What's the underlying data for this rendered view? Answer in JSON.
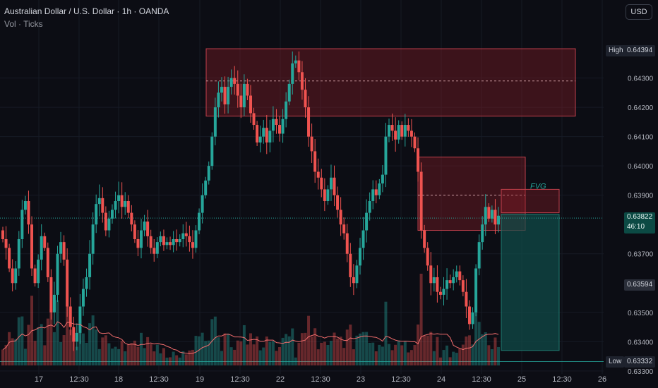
{
  "header": {
    "symbol_title": "Australian Dollar / U.S. Dollar · 1h · OANDA",
    "volume_label": "Vol · Ticks"
  },
  "currency_button": "USD",
  "price_tags": {
    "high_label": "High",
    "high_value": "0.64394",
    "current_value": "0.63822",
    "countdown": "46:10",
    "level_value": "0.63594",
    "low_label": "Low",
    "low_value": "0.63332"
  },
  "annotation": {
    "fvg_label": "FVG"
  },
  "colors": {
    "up": "#26a69a",
    "down": "#ef5350",
    "background": "#0c0d14",
    "zone_fill": "#8b1e28",
    "target_fill": "#0f4f4a",
    "ma_line": "#f26d6d"
  },
  "chart_data": {
    "type": "candlestick",
    "y_axis": {
      "range": [
        0.6329,
        0.6447
      ],
      "ticks": [
        "0.64300",
        "0.64200",
        "0.64100",
        "0.64000",
        "0.63900",
        "0.63700",
        "0.63500",
        "0.63400",
        "0.63300"
      ]
    },
    "x_axis": {
      "labels": [
        "17",
        "12:30",
        "18",
        "12:30",
        "19",
        "12:30",
        "22",
        "12:30",
        "23",
        "12:30",
        "24",
        "12:30",
        "25",
        "12:30",
        "26"
      ]
    },
    "high_marker": 0.64394,
    "low_marker": 0.63332,
    "current_price": 0.63822,
    "level_marker": 0.63594,
    "zones": [
      {
        "name": "upper-supply-zone",
        "top": 0.644,
        "bottom": 0.6417,
        "mid": 0.6429
      },
      {
        "name": "fvg-zone",
        "top": 0.6403,
        "bottom": 0.6378,
        "mid": 0.639
      },
      {
        "name": "small-fvg-zone",
        "top": 0.6392,
        "bottom": 0.6384
      }
    ],
    "target_box": {
      "top": 0.63835,
      "bottom": 0.6337
    },
    "closes": [
      0.6375,
      0.6372,
      0.6365,
      0.636,
      0.6365,
      0.6375,
      0.6385,
      0.6388,
      0.638,
      0.6365,
      0.636,
      0.6368,
      0.6376,
      0.6372,
      0.6362,
      0.635,
      0.6356,
      0.637,
      0.6374,
      0.6368,
      0.6352,
      0.6345,
      0.634,
      0.6343,
      0.6352,
      0.6358,
      0.6362,
      0.637,
      0.638,
      0.6387,
      0.6389,
      0.6384,
      0.6378,
      0.6382,
      0.6385,
      0.6388,
      0.639,
      0.6386,
      0.6388,
      0.6384,
      0.638,
      0.6375,
      0.6372,
      0.6378,
      0.6381,
      0.6376,
      0.6372,
      0.637,
      0.6374,
      0.6376,
      0.6373,
      0.6374,
      0.6373,
      0.6375,
      0.6374,
      0.6375,
      0.6377,
      0.6376,
      0.6374,
      0.6372,
      0.6378,
      0.6384,
      0.639,
      0.6395,
      0.64,
      0.641,
      0.642,
      0.6425,
      0.6427,
      0.6421,
      0.6427,
      0.643,
      0.6428,
      0.6424,
      0.642,
      0.6428,
      0.6424,
      0.6418,
      0.6414,
      0.6408,
      0.641,
      0.6413,
      0.6408,
      0.6412,
      0.6416,
      0.6414,
      0.6411,
      0.6416,
      0.6422,
      0.6428,
      0.6435,
      0.6436,
      0.6432,
      0.6426,
      0.642,
      0.641,
      0.6405,
      0.6398,
      0.6396,
      0.6392,
      0.6388,
      0.6392,
      0.6396,
      0.639,
      0.6385,
      0.638,
      0.6377,
      0.637,
      0.6362,
      0.636,
      0.6366,
      0.6372,
      0.6378,
      0.6384,
      0.6388,
      0.6392,
      0.639,
      0.6394,
      0.6397,
      0.641,
      0.6414,
      0.6412,
      0.6409,
      0.6414,
      0.641,
      0.6414,
      0.6412,
      0.641,
      0.6406,
      0.6398,
      0.6378,
      0.6372,
      0.6366,
      0.636,
      0.6362,
      0.6357,
      0.6356,
      0.6358,
      0.6361,
      0.636,
      0.6362,
      0.6364,
      0.6361,
      0.6357,
      0.6352,
      0.6346,
      0.635,
      0.6365,
      0.6374,
      0.638,
      0.6386,
      0.6382,
      0.6385,
      0.638,
      0.6383
    ]
  }
}
